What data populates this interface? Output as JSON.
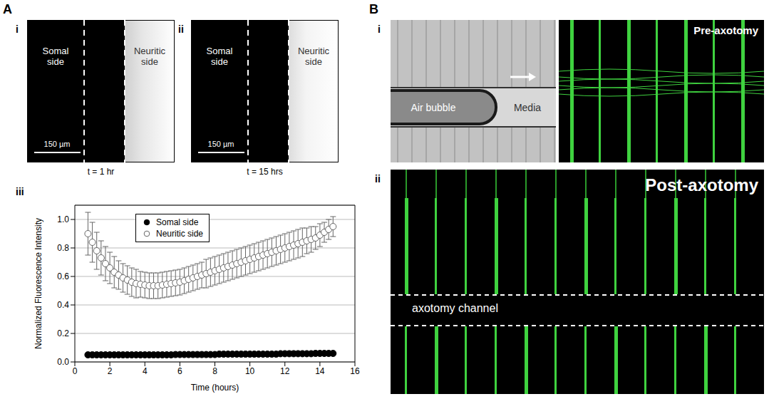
{
  "figure": {
    "panel_A": {
      "label": "A",
      "i": {
        "label": "i",
        "left": "Somal side",
        "right": "Neuritic side",
        "scale_bar": "150 µm",
        "time": "t = 1 hr"
      },
      "ii": {
        "label": "ii",
        "left": "Somal side",
        "right": "Neuritic side",
        "scale_bar": "150 µm",
        "time": "t = 15 hrs"
      },
      "iii": {
        "label": "iii"
      }
    },
    "panel_B": {
      "label": "B",
      "i": {
        "label": "i",
        "bubble": "Air bubble",
        "media": "Media",
        "image_title": "Pre-axotomy"
      },
      "ii": {
        "label": "ii",
        "image_title": "Post-axotomy",
        "channel": "axotomy channel"
      }
    }
  },
  "chart_data": {
    "type": "scatter",
    "x_label": "Time (hours)",
    "y_label": "Normalized Fluorescence Intensity",
    "xlim": [
      0,
      16
    ],
    "xticks": [
      0,
      2,
      4,
      6,
      8,
      10,
      12,
      14,
      16
    ],
    "ylim": [
      0,
      1.1
    ],
    "yticks": [
      {
        "value": 0,
        "label": "0.0"
      },
      0.2,
      0.4,
      0.6,
      0.8,
      {
        "value": 1,
        "label": "1.0"
      }
    ],
    "grid": true,
    "legend": "top",
    "x": [
      0.75,
      1,
      1.25,
      1.5,
      1.75,
      2,
      2.25,
      2.5,
      2.75,
      3,
      3.25,
      3.5,
      3.75,
      4,
      4.25,
      4.5,
      4.75,
      5,
      5.25,
      5.5,
      5.75,
      6,
      6.25,
      6.5,
      6.75,
      7,
      7.25,
      7.5,
      7.75,
      8,
      8.25,
      8.5,
      8.75,
      9,
      9.25,
      9.5,
      9.75,
      10,
      10.25,
      10.5,
      10.75,
      11,
      11.25,
      11.5,
      11.75,
      12,
      12.25,
      12.5,
      12.75,
      13,
      13.25,
      13.5,
      13.75,
      14,
      14.25,
      14.5,
      14.75
    ],
    "series": [
      {
        "name": "Somal side",
        "color": "#000000",
        "marker": "circle",
        "values": [
          0.05,
          0.05,
          0.05,
          0.05,
          0.05,
          0.05,
          0.05,
          0.05,
          0.05,
          0.05,
          0.05,
          0.05,
          0.05,
          0.05,
          0.05,
          0.05,
          0.05,
          0.05,
          0.05,
          0.05,
          0.052,
          0.052,
          0.052,
          0.052,
          0.052,
          0.052,
          0.052,
          0.052,
          0.052,
          0.052,
          0.055,
          0.055,
          0.055,
          0.055,
          0.055,
          0.055,
          0.055,
          0.055,
          0.055,
          0.055,
          0.055,
          0.055,
          0.055,
          0.055,
          0.058,
          0.058,
          0.058,
          0.058,
          0.058,
          0.058,
          0.058,
          0.058,
          0.06,
          0.06,
          0.06,
          0.06,
          0.06
        ]
      },
      {
        "name": "Neuritic side",
        "color": "#666666",
        "marker": "open_circle",
        "values": [
          0.9,
          0.84,
          0.78,
          0.73,
          0.69,
          0.66,
          0.63,
          0.61,
          0.59,
          0.575,
          0.56,
          0.55,
          0.545,
          0.54,
          0.535,
          0.535,
          0.535,
          0.54,
          0.545,
          0.55,
          0.555,
          0.56,
          0.57,
          0.58,
          0.59,
          0.6,
          0.61,
          0.62,
          0.63,
          0.64,
          0.65,
          0.66,
          0.67,
          0.68,
          0.69,
          0.7,
          0.71,
          0.72,
          0.73,
          0.74,
          0.75,
          0.76,
          0.77,
          0.78,
          0.79,
          0.8,
          0.81,
          0.82,
          0.83,
          0.84,
          0.85,
          0.86,
          0.87,
          0.89,
          0.91,
          0.93,
          0.95
        ],
        "error": [
          0.15,
          0.14,
          0.13,
          0.12,
          0.12,
          0.11,
          0.11,
          0.1,
          0.1,
          0.1,
          0.1,
          0.1,
          0.09,
          0.09,
          0.09,
          0.09,
          0.09,
          0.09,
          0.09,
          0.09,
          0.09,
          0.09,
          0.09,
          0.09,
          0.09,
          0.09,
          0.09,
          0.1,
          0.1,
          0.1,
          0.1,
          0.1,
          0.1,
          0.1,
          0.1,
          0.1,
          0.1,
          0.1,
          0.1,
          0.1,
          0.1,
          0.1,
          0.1,
          0.1,
          0.1,
          0.1,
          0.1,
          0.1,
          0.1,
          0.1,
          0.09,
          0.09,
          0.08,
          0.08,
          0.07,
          0.07,
          0.07
        ]
      }
    ]
  }
}
